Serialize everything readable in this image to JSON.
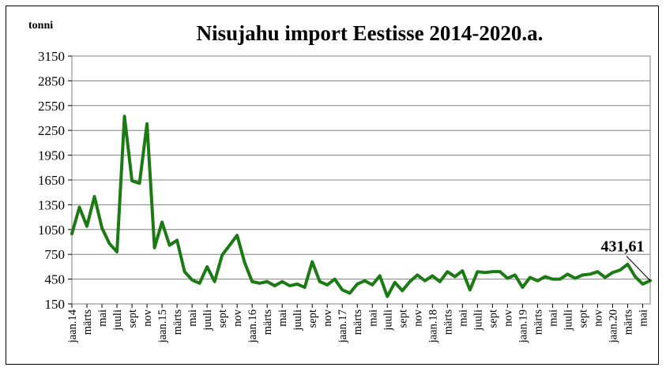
{
  "chart_data": {
    "type": "line",
    "title": "Nisujahu import Eestisse 2014-2020.a.",
    "ylabel": "tonni",
    "xlabel": "",
    "ylim": [
      150,
      3150
    ],
    "yticks": [
      150,
      450,
      750,
      1050,
      1350,
      1650,
      1950,
      2250,
      2550,
      2850,
      3150
    ],
    "grid": true,
    "legend": "none",
    "line_color": "#1b7a14",
    "x_tick_labels": [
      "jaan.14",
      "märts",
      "mai",
      "juuli",
      "sept",
      "nov",
      "jaan.15",
      "märts",
      "mai",
      "juuli",
      "sept",
      "nov",
      "jaan.16",
      "märts",
      "mai",
      "juuli",
      "sept",
      "nov",
      "jaan.17",
      "märts",
      "mai",
      "juuli",
      "sept",
      "nov",
      "jaan.18",
      "märts",
      "mai",
      "juuli",
      "sept",
      "nov",
      "jaan.19",
      "märts",
      "mai",
      "juuli",
      "sept",
      "nov",
      "jaan.20",
      "märts",
      "mai"
    ],
    "months": [
      "2014-01",
      "2014-02",
      "2014-03",
      "2014-04",
      "2014-05",
      "2014-06",
      "2014-07",
      "2014-08",
      "2014-09",
      "2014-10",
      "2014-11",
      "2014-12",
      "2015-01",
      "2015-02",
      "2015-03",
      "2015-04",
      "2015-05",
      "2015-06",
      "2015-07",
      "2015-08",
      "2015-09",
      "2015-10",
      "2015-11",
      "2015-12",
      "2016-01",
      "2016-02",
      "2016-03",
      "2016-04",
      "2016-05",
      "2016-06",
      "2016-07",
      "2016-08",
      "2016-09",
      "2016-10",
      "2016-11",
      "2016-12",
      "2017-01",
      "2017-02",
      "2017-03",
      "2017-04",
      "2017-05",
      "2017-06",
      "2017-07",
      "2017-08",
      "2017-09",
      "2017-10",
      "2017-11",
      "2017-12",
      "2018-01",
      "2018-02",
      "2018-03",
      "2018-04",
      "2018-05",
      "2018-06",
      "2018-07",
      "2018-08",
      "2018-09",
      "2018-10",
      "2018-11",
      "2018-12",
      "2019-01",
      "2019-02",
      "2019-03",
      "2019-04",
      "2019-05",
      "2019-06",
      "2019-07",
      "2019-08",
      "2019-09",
      "2019-10",
      "2019-11",
      "2019-12",
      "2020-01",
      "2020-02",
      "2020-03",
      "2020-04",
      "2020-05",
      "2020-06"
    ],
    "values": [
      1000,
      1320,
      1090,
      1450,
      1070,
      880,
      780,
      2420,
      1640,
      1610,
      2330,
      830,
      1140,
      860,
      920,
      540,
      440,
      400,
      600,
      420,
      740,
      860,
      980,
      650,
      420,
      400,
      420,
      370,
      420,
      370,
      390,
      350,
      660,
      420,
      380,
      450,
      320,
      280,
      390,
      430,
      380,
      490,
      240,
      410,
      310,
      420,
      500,
      430,
      490,
      420,
      540,
      480,
      550,
      320,
      540,
      530,
      540,
      540,
      460,
      500,
      350,
      470,
      430,
      480,
      450,
      450,
      510,
      460,
      500,
      510,
      540,
      470,
      530,
      560,
      630,
      480,
      390,
      431.61
    ],
    "annotation": "431,61"
  }
}
